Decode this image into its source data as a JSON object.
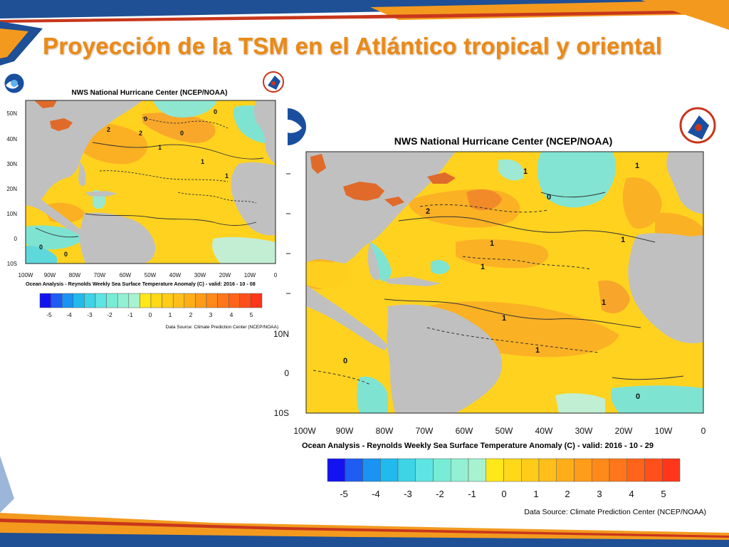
{
  "slide": {
    "title": "Proyección de la TSM en el Atlántico tropical y oriental"
  },
  "colors": {
    "title": "#ea8a16",
    "land": "#c0c0c0",
    "lake": "#e06a2a"
  },
  "map_small": {
    "header": "NWS National Hurricane Center (NCEP/NOAA)",
    "caption": "Ocean Analysis - Reynolds Weekly Sea Surface Temperature Anomaly (C) - valid: 2016 - 10 - 08",
    "source": "Data Source: Climate Prediction Center (NCEP/NOAA)",
    "lat_labels": [
      "50N",
      "40N",
      "30N",
      "20N",
      "10N",
      "0",
      "10S"
    ],
    "lon_labels": [
      "100W",
      "90W",
      "80W",
      "70W",
      "60W",
      "50W",
      "40W",
      "30W",
      "20W",
      "10W",
      "0"
    ],
    "contour_labels": [
      "0",
      "2",
      "0",
      "2",
      "1",
      "1",
      "1",
      "0",
      "0",
      "0"
    ],
    "colorbar_labels": [
      "-5",
      "-4",
      "-3",
      "-2",
      "-1",
      "0",
      "1",
      "2",
      "3",
      "4",
      "5"
    ],
    "logo_left": "noaa-logo",
    "logo_right": "nws-logo"
  },
  "map_large": {
    "header": "NWS National Hurricane Center (NCEP/NOAA)",
    "caption": "Ocean Analysis - Reynolds Weekly Sea Surface Temperature Anomaly (C) - valid: 2016 - 10 - 29",
    "source": "Data Source: Climate Prediction Center (NCEP/NOAA)",
    "lat_labels": [
      "10N",
      "0",
      "10S"
    ],
    "lon_labels": [
      "100W",
      "90W",
      "80W",
      "70W",
      "60W",
      "50W",
      "40W",
      "30W",
      "20W",
      "10W",
      "0"
    ],
    "contour_labels": [
      "2",
      "1",
      "1",
      "1",
      "0",
      "1",
      "1",
      "1",
      "1",
      "1",
      "0",
      "0"
    ],
    "colorbar_labels": [
      "-5",
      "-4",
      "-3",
      "-2",
      "-1",
      "0",
      "1",
      "2",
      "3",
      "4",
      "5"
    ],
    "logo_left": "noaa-logo",
    "logo_right": "nws-logo"
  },
  "colorbar_colors": [
    "#1313f2",
    "#1e5cf2",
    "#1a93f2",
    "#22b9ec",
    "#3fd3e6",
    "#5ee5e3",
    "#79ecd6",
    "#93f0d2",
    "#a7f2d0",
    "#ffe81a",
    "#ffd81a",
    "#ffcc1a",
    "#ffbf1a",
    "#ffae1a",
    "#ff9c1a",
    "#ff8a1a",
    "#ff771a",
    "#ff641a",
    "#ff4f1a",
    "#ff361a"
  ]
}
